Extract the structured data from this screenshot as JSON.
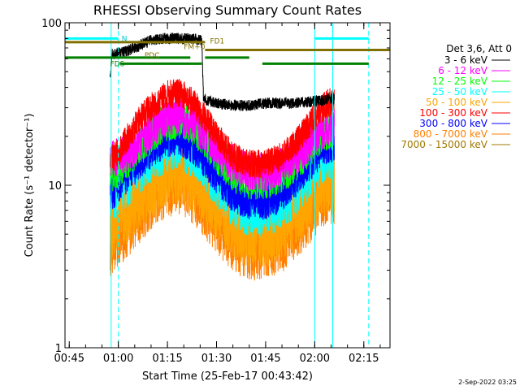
{
  "chart_data": {
    "type": "line",
    "title": "RHESSI Observing Summary Count Rates",
    "xlabel": "Start Time (25-Feb-17 00:43:42)",
    "ylabel": "Count Rate (s⁻¹ detector⁻¹)",
    "yscale": "log",
    "xlim_minutes": [
      43.7,
      143.0
    ],
    "ylim": [
      1,
      100
    ],
    "x_ticks": [
      {
        "m": 45,
        "label": "00:45"
      },
      {
        "m": 60,
        "label": "01:00"
      },
      {
        "m": 75,
        "label": "01:15"
      },
      {
        "m": 90,
        "label": "01:30"
      },
      {
        "m": 105,
        "label": "01:45"
      },
      {
        "m": 120,
        "label": "02:00"
      },
      {
        "m": 135,
        "label": "02:15"
      }
    ],
    "y_ticks": [
      {
        "v": 1,
        "label": "1"
      },
      {
        "v": 10,
        "label": "10"
      },
      {
        "v": 100,
        "label": "100"
      }
    ],
    "legend_header": "Det 3,6, Att 0",
    "legend_position": "right",
    "series": [
      {
        "name": "3 - 6 keV",
        "color": "#000000",
        "points": [
          [
            57.5,
            45
          ],
          [
            58,
            64
          ],
          [
            62,
            66
          ],
          [
            66,
            72
          ],
          [
            70,
            78
          ],
          [
            74,
            80
          ],
          [
            78,
            80
          ],
          [
            82,
            80
          ],
          [
            85.5,
            78
          ],
          [
            86,
            34
          ],
          [
            90,
            32
          ],
          [
            95,
            31
          ],
          [
            100,
            31
          ],
          [
            105,
            32
          ],
          [
            110,
            32
          ],
          [
            115,
            32
          ],
          [
            120,
            33
          ],
          [
            122,
            33
          ],
          [
            124,
            34
          ],
          [
            126,
            34
          ]
        ]
      },
      {
        "name": "6 - 12 keV",
        "color": "#ff00ff",
        "points": [
          [
            57.5,
            14
          ],
          [
            60,
            15
          ],
          [
            63,
            16
          ],
          [
            67,
            19
          ],
          [
            71,
            23
          ],
          [
            75,
            26
          ],
          [
            79,
            27
          ],
          [
            83,
            24
          ],
          [
            87,
            20
          ],
          [
            91,
            16
          ],
          [
            95,
            13.5
          ],
          [
            100,
            12
          ],
          [
            105,
            12
          ],
          [
            110,
            13
          ],
          [
            114,
            15
          ],
          [
            118,
            18
          ],
          [
            121,
            21
          ],
          [
            124,
            23
          ],
          [
            126,
            23
          ]
        ]
      },
      {
        "name": "12 - 25 keV",
        "color": "#00ff00",
        "points": [
          [
            57.5,
            12
          ],
          [
            60,
            13
          ],
          [
            63,
            15
          ],
          [
            67,
            18
          ],
          [
            71,
            22
          ],
          [
            75,
            25
          ],
          [
            79,
            26
          ],
          [
            83,
            23
          ],
          [
            87,
            19
          ],
          [
            91,
            15
          ],
          [
            95,
            12
          ],
          [
            100,
            11
          ],
          [
            105,
            11
          ],
          [
            110,
            12
          ],
          [
            114,
            14
          ],
          [
            118,
            17
          ],
          [
            121,
            20
          ],
          [
            124,
            22
          ],
          [
            126,
            22
          ]
        ]
      },
      {
        "name": "25 - 50 keV",
        "color": "#00ffff",
        "points": [
          [
            57.5,
            9
          ],
          [
            60,
            10
          ],
          [
            63,
            11.5
          ],
          [
            67,
            14
          ],
          [
            71,
            17
          ],
          [
            75,
            19
          ],
          [
            79,
            20
          ],
          [
            83,
            17
          ],
          [
            87,
            14
          ],
          [
            91,
            11
          ],
          [
            95,
            8.5
          ],
          [
            100,
            7.5
          ],
          [
            105,
            7.5
          ],
          [
            110,
            8.5
          ],
          [
            114,
            10
          ],
          [
            118,
            12.5
          ],
          [
            121,
            15
          ],
          [
            124,
            17
          ],
          [
            126,
            17
          ]
        ]
      },
      {
        "name": "50 - 100 keV",
        "color": "#ffa500",
        "points": [
          [
            57.5,
            5.5
          ],
          [
            60,
            6
          ],
          [
            63,
            7
          ],
          [
            67,
            8.5
          ],
          [
            71,
            10
          ],
          [
            75,
            11.5
          ],
          [
            79,
            12
          ],
          [
            83,
            10.5
          ],
          [
            87,
            8.5
          ],
          [
            91,
            7
          ],
          [
            95,
            5.5
          ],
          [
            100,
            5
          ],
          [
            105,
            5
          ],
          [
            110,
            5.5
          ],
          [
            114,
            6.5
          ],
          [
            118,
            8
          ],
          [
            121,
            9.5
          ],
          [
            124,
            10.5
          ],
          [
            126,
            10.5
          ]
        ]
      },
      {
        "name": "100 - 300 keV",
        "color": "#ff0000",
        "points": [
          [
            57.5,
            14
          ],
          [
            60,
            16
          ],
          [
            63,
            20
          ],
          [
            67,
            26
          ],
          [
            71,
            32
          ],
          [
            75,
            36
          ],
          [
            79,
            37
          ],
          [
            83,
            32
          ],
          [
            87,
            25
          ],
          [
            91,
            19
          ],
          [
            95,
            15
          ],
          [
            100,
            13.5
          ],
          [
            105,
            13.5
          ],
          [
            110,
            15
          ],
          [
            114,
            18
          ],
          [
            118,
            23
          ],
          [
            121,
            28
          ],
          [
            124,
            32
          ],
          [
            126,
            33
          ]
        ]
      },
      {
        "name": "300 - 800 keV",
        "color": "#0000ff",
        "points": [
          [
            57.5,
            9
          ],
          [
            60,
            10
          ],
          [
            63,
            12
          ],
          [
            67,
            14.5
          ],
          [
            71,
            17.5
          ],
          [
            75,
            19.5
          ],
          [
            79,
            20
          ],
          [
            83,
            17.5
          ],
          [
            87,
            14
          ],
          [
            91,
            11
          ],
          [
            95,
            9
          ],
          [
            100,
            8
          ],
          [
            105,
            8
          ],
          [
            110,
            9
          ],
          [
            114,
            11
          ],
          [
            118,
            13.5
          ],
          [
            121,
            16
          ],
          [
            124,
            18
          ],
          [
            126,
            18
          ]
        ]
      },
      {
        "name": "800 - 7000 keV",
        "color": "#ff8000",
        "points": [
          [
            57.5,
            4.5
          ],
          [
            60,
            5
          ],
          [
            63,
            6
          ],
          [
            67,
            7.5
          ],
          [
            71,
            9
          ],
          [
            75,
            10.5
          ],
          [
            79,
            11
          ],
          [
            83,
            9.5
          ],
          [
            87,
            7.5
          ],
          [
            91,
            6
          ],
          [
            95,
            4.8
          ],
          [
            100,
            4.3
          ],
          [
            105,
            4.3
          ],
          [
            110,
            4.8
          ],
          [
            114,
            5.8
          ],
          [
            118,
            7
          ],
          [
            121,
            8.5
          ],
          [
            124,
            9.5
          ],
          [
            126,
            9.5
          ]
        ]
      },
      {
        "name": "7000 - 15000 keV",
        "color": "#a07800",
        "points": []
      }
    ],
    "vertical_markers": [
      {
        "m": 57.8,
        "color": "#00ffff",
        "dash": false
      },
      {
        "m": 60.0,
        "color": "#00ffff",
        "dash": true
      },
      {
        "m": 120.0,
        "color": "#00ffff",
        "dash": false
      },
      {
        "m": 125.5,
        "color": "#00ffff",
        "dash": false
      },
      {
        "m": 136.5,
        "color": "#00ffff",
        "dash": true
      }
    ],
    "flag_bars": [
      {
        "label": "N",
        "color": "#00ffff",
        "y": 80,
        "segments": [
          [
            43.7,
            60.0
          ],
          [
            120.0,
            136.5
          ]
        ]
      },
      {
        "label": "FD1",
        "color": "#807000",
        "y": 76,
        "segments": [
          [
            43.7,
            86.5
          ]
        ]
      },
      {
        "label": "FD1",
        "color": "#807000",
        "y": 68,
        "segments": [
          [
            86.5,
            143.0
          ]
        ]
      },
      {
        "label": "",
        "color": "#008000",
        "y": 61,
        "segments": [
          [
            43.7,
            82.0
          ],
          [
            86.5,
            100.0
          ]
        ]
      },
      {
        "label": "FDS",
        "color": "#008000",
        "y": 56,
        "segments": [
          [
            60.5,
            85.5
          ],
          [
            104.0,
            136.5
          ]
        ]
      }
    ],
    "flag_texts": [
      "N",
      "FD1",
      "PDC",
      "FDS",
      "FM+0"
    ]
  },
  "footer_date": "2-Sep-2022 03:25"
}
